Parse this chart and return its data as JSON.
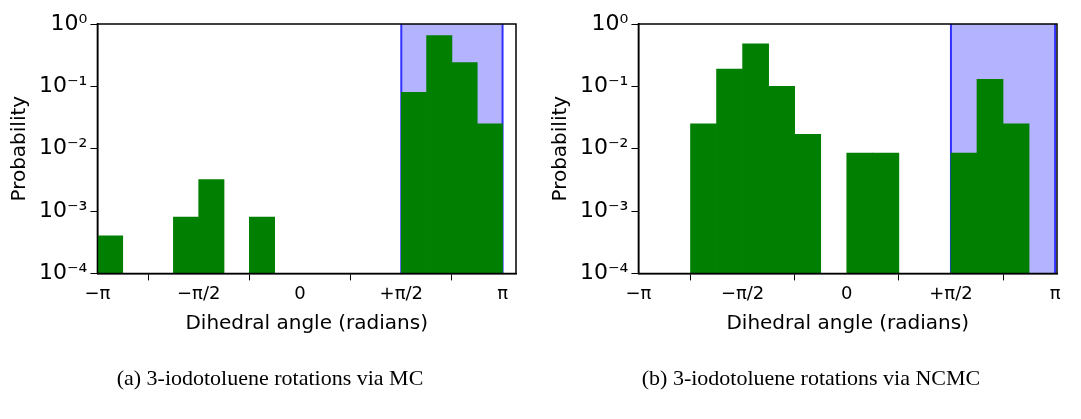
{
  "chart_data": [
    {
      "type": "histogram",
      "bins": [
        -3.1416,
        -2.7489,
        -2.3562,
        -1.9635,
        -1.5708,
        -1.1781,
        -0.7854,
        -0.3927,
        0,
        0.3927,
        0.7854,
        1.1781,
        1.5708,
        1.9635,
        2.3562,
        2.7489,
        3.1416
      ],
      "values": [
        0.0004,
        null,
        null,
        0.0008,
        0.0032,
        null,
        0.0008,
        null,
        null,
        null,
        null,
        null,
        0.08,
        0.65,
        0.24,
        0.025
      ],
      "color": "#007f00",
      "xlabel": "Dihedral angle (radians)",
      "ylabel": "Probability",
      "log": "y",
      "grid": false,
      "xlim": [
        -3.1416,
        3.35
      ],
      "xticks": [
        {
          "value": -3.1416,
          "label": "−π"
        },
        {
          "value": -1.5708,
          "label": "−π/2"
        },
        0,
        {
          "value": 1.5708,
          "label": "+π/2"
        },
        {
          "value": 3.1416,
          "label": "π"
        }
      ],
      "ylim": [
        0.0001,
        1
      ],
      "yticks": [
        {
          "value": 0.0001,
          "label": "10⁻⁴"
        },
        {
          "value": 0.001,
          "label": "10⁻³"
        },
        {
          "value": 0.01,
          "label": "10⁻²"
        },
        {
          "value": 0.1,
          "label": "10⁻¹"
        },
        {
          "value": 1,
          "label": "10⁰"
        }
      ],
      "bands": [
        {
          "axis": "x",
          "from": 1.5708,
          "to": 3.1416,
          "color": "#b3b3ff"
        }
      ],
      "ref_lines": [
        {
          "axis": "x",
          "value": 1.5708,
          "color": "#3030ff"
        },
        {
          "axis": "x",
          "value": 3.1416,
          "color": "#3030ff"
        }
      ],
      "annotations": [
        "(a) 3-iodotoluene rotations via MC"
      ]
    },
    {
      "type": "histogram",
      "bins": [
        -3.1416,
        -2.7489,
        -2.3562,
        -1.9635,
        -1.5708,
        -1.1781,
        -0.7854,
        -0.3927,
        0,
        0.3927,
        0.7854,
        1.1781,
        1.5708,
        1.9635,
        2.3562,
        2.7489,
        3.1416
      ],
      "values": [
        null,
        null,
        0.025,
        0.19,
        0.48,
        0.1,
        0.017,
        null,
        0.0085,
        0.0085,
        null,
        null,
        0.0085,
        0.13,
        0.025,
        null
      ],
      "color": "#007f00",
      "xlabel": "Dihedral angle (radians)",
      "ylabel": "Probability",
      "log": "y",
      "grid": false,
      "xlim": [
        -3.1416,
        3.17
      ],
      "xticks": [
        {
          "value": -3.1416,
          "label": "−π"
        },
        {
          "value": -1.5708,
          "label": "−π/2"
        },
        0,
        {
          "value": 1.5708,
          "label": "+π/2"
        },
        {
          "value": 3.1416,
          "label": "π"
        }
      ],
      "ylim": [
        0.0001,
        1
      ],
      "yticks": [
        {
          "value": 0.0001,
          "label": "10⁻⁴"
        },
        {
          "value": 0.001,
          "label": "10⁻³"
        },
        {
          "value": 0.01,
          "label": "10⁻²"
        },
        {
          "value": 0.1,
          "label": "10⁻¹"
        },
        {
          "value": 1,
          "label": "10⁰"
        }
      ],
      "bands": [
        {
          "axis": "x",
          "from": 1.5708,
          "to": 3.1416,
          "color": "#b3b3ff"
        }
      ],
      "ref_lines": [
        {
          "axis": "x",
          "value": 1.5708,
          "color": "#3030ff"
        },
        {
          "axis": "x",
          "value": 3.1416,
          "color": "#3030ff"
        }
      ],
      "annotations": [
        "(b) 3-iodotoluene rotations via NCMC"
      ]
    }
  ]
}
